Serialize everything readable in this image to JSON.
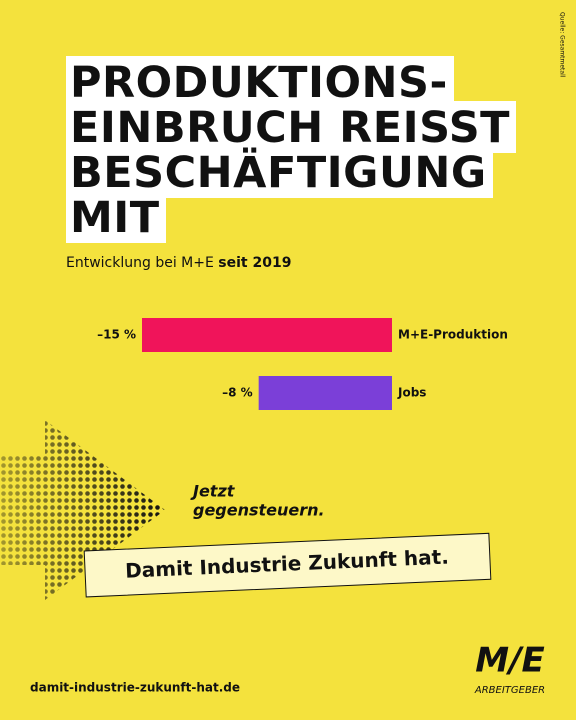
{
  "header": {
    "title_lines": [
      "PRODUKTIONS-",
      "EINBRUCH REISST",
      "BESCHÄFTIGUNG",
      "MIT"
    ],
    "source": "Quelle: Gesamtmetall"
  },
  "chart_data": {
    "type": "bar",
    "orientation": "horizontal",
    "subtitle": "Entwicklung bei M+E",
    "subtitle_bold": "seit 2019",
    "categories": [
      "M+E-Produktion",
      "Jobs"
    ],
    "values": [
      -15,
      -8
    ],
    "value_labels": [
      "–15 %",
      "–8 %"
    ],
    "colors": [
      "#f0145a",
      "#7b3fd8"
    ],
    "xlim": [
      -15,
      0
    ]
  },
  "slogan": {
    "lines": [
      "Jetzt",
      "gegensteuern."
    ],
    "banner": "Damit Industrie Zukunft hat."
  },
  "footer": {
    "url": "damit-industrie-zukunft-hat.de",
    "logo": "M/E",
    "logo_sub": "ARBEITGEBER"
  }
}
